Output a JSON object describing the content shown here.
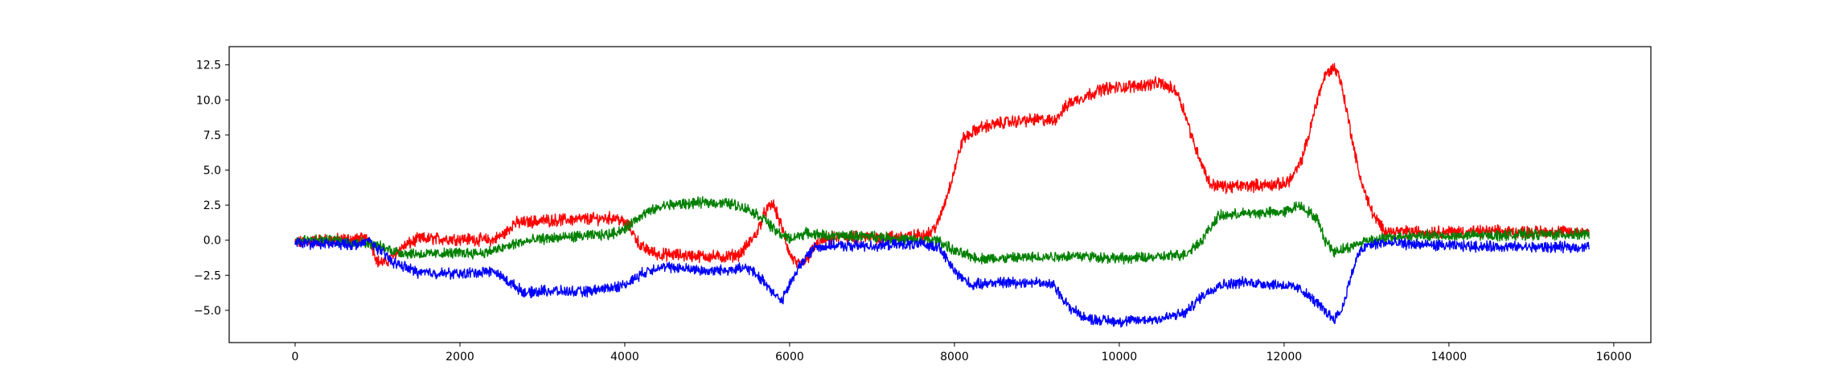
{
  "chart_data": {
    "type": "line",
    "title": "",
    "xlabel": "",
    "ylabel": "",
    "xlim": [
      -800,
      16450
    ],
    "ylim": [
      -7.3,
      13.8
    ],
    "xticks": [
      0,
      2000,
      4000,
      6000,
      8000,
      10000,
      12000,
      14000,
      16000
    ],
    "xtick_labels": [
      "0",
      "2000",
      "4000",
      "6000",
      "8000",
      "10000",
      "12000",
      "14000",
      "16000"
    ],
    "yticks": [
      -5.0,
      -2.5,
      0.0,
      2.5,
      5.0,
      7.5,
      10.0,
      12.5
    ],
    "ytick_labels": [
      "−5.0",
      "−2.5",
      "0.0",
      "2.5",
      "5.0",
      "7.5",
      "10.0",
      "12.5"
    ],
    "grid": false,
    "legend": "none",
    "series": [
      {
        "color": "#ff0000",
        "noise": 0.35,
        "x": [
          0,
          300,
          900,
          1000,
          1100,
          1300,
          1500,
          2000,
          2400,
          2550,
          2650,
          3000,
          3500,
          3900,
          4050,
          4200,
          4400,
          4800,
          5200,
          5400,
          5600,
          5700,
          5800,
          5900,
          6000,
          6100,
          6200,
          6300,
          6400,
          6600,
          7000,
          7500,
          7700,
          7800,
          7900,
          8000,
          8100,
          8300,
          8600,
          9000,
          9200,
          9400,
          9800,
          10200,
          10500,
          10700,
          10800,
          10900,
          11000,
          11100,
          11300,
          11600,
          12000,
          12100,
          12200,
          12300,
          12400,
          12500,
          12600,
          12650,
          12700,
          12800,
          12900,
          13000,
          13100,
          13200,
          13300,
          13600,
          14000,
          15000,
          15700
        ],
        "y": [
          -0.2,
          0.0,
          0.1,
          -1.5,
          -1.6,
          -0.5,
          0.1,
          0.1,
          0.0,
          0.5,
          1.2,
          1.4,
          1.5,
          1.6,
          1.0,
          -0.5,
          -1.0,
          -1.1,
          -1.2,
          -1.0,
          0.5,
          2.0,
          2.6,
          1.0,
          -1.0,
          -1.8,
          -1.5,
          -0.5,
          0.0,
          0.2,
          0.2,
          0.3,
          0.5,
          1.2,
          3.0,
          5.0,
          7.2,
          8.0,
          8.4,
          8.6,
          8.5,
          9.8,
          10.8,
          11.0,
          11.2,
          10.6,
          9.0,
          7.0,
          5.5,
          4.0,
          3.8,
          3.9,
          4.0,
          4.5,
          5.5,
          7.5,
          10.0,
          11.8,
          12.3,
          12.0,
          11.0,
          8.0,
          5.0,
          3.0,
          1.6,
          0.8,
          0.6,
          0.6,
          0.6,
          0.6,
          0.6
        ]
      },
      {
        "color": "#008000",
        "noise": 0.3,
        "x": [
          0,
          500,
          900,
          1100,
          1300,
          1600,
          2000,
          2300,
          2500,
          2700,
          3000,
          3500,
          3800,
          4000,
          4200,
          4500,
          5000,
          5300,
          5500,
          5700,
          5800,
          5900,
          6000,
          6200,
          6500,
          7000,
          7500,
          7800,
          8000,
          8300,
          8600,
          9000,
          9500,
          10000,
          10500,
          10800,
          11000,
          11200,
          11500,
          12000,
          12100,
          12200,
          12400,
          12500,
          12600,
          12800,
          13000,
          13500,
          14000,
          15000,
          15700
        ],
        "y": [
          0.0,
          0.0,
          -0.2,
          -0.6,
          -0.9,
          -1.0,
          -0.9,
          -0.9,
          -0.6,
          -0.2,
          0.1,
          0.3,
          0.4,
          0.8,
          1.8,
          2.5,
          2.7,
          2.6,
          2.2,
          1.5,
          0.8,
          0.4,
          0.1,
          0.5,
          0.3,
          0.3,
          0.0,
          0.0,
          -0.8,
          -1.3,
          -1.3,
          -1.2,
          -1.1,
          -1.3,
          -1.2,
          -1.0,
          0.0,
          1.7,
          1.9,
          2.0,
          2.3,
          2.5,
          1.5,
          0.0,
          -0.8,
          -0.5,
          0.0,
          0.3,
          0.3,
          0.4,
          0.4
        ]
      },
      {
        "color": "#0000ff",
        "noise": 0.3,
        "x": [
          0,
          500,
          800,
          900,
          1000,
          1200,
          1500,
          2000,
          2400,
          2600,
          2800,
          3000,
          3500,
          4000,
          4200,
          4400,
          4700,
          5000,
          5500,
          5700,
          5900,
          6100,
          6300,
          6500,
          7000,
          7500,
          7800,
          8000,
          8200,
          8500,
          9000,
          9200,
          9400,
          9600,
          10000,
          10500,
          10800,
          11000,
          11200,
          11500,
          12000,
          12200,
          12400,
          12600,
          12700,
          12800,
          12900,
          13000,
          13200,
          14000,
          15000,
          15700
        ],
        "y": [
          -0.2,
          -0.3,
          -0.3,
          0.0,
          -0.6,
          -1.6,
          -2.3,
          -2.4,
          -2.2,
          -3.0,
          -3.8,
          -3.6,
          -3.7,
          -3.2,
          -2.4,
          -1.9,
          -2.0,
          -2.2,
          -2.0,
          -3.0,
          -4.4,
          -2.0,
          -0.5,
          -0.4,
          -0.4,
          -0.3,
          -0.4,
          -2.2,
          -3.2,
          -3.0,
          -3.0,
          -3.2,
          -4.8,
          -5.6,
          -5.8,
          -5.6,
          -5.2,
          -4.0,
          -3.2,
          -3.0,
          -3.2,
          -3.5,
          -4.5,
          -5.6,
          -5.0,
          -2.8,
          -1.0,
          -0.4,
          -0.2,
          -0.4,
          -0.5,
          -0.5
        ]
      }
    ]
  }
}
